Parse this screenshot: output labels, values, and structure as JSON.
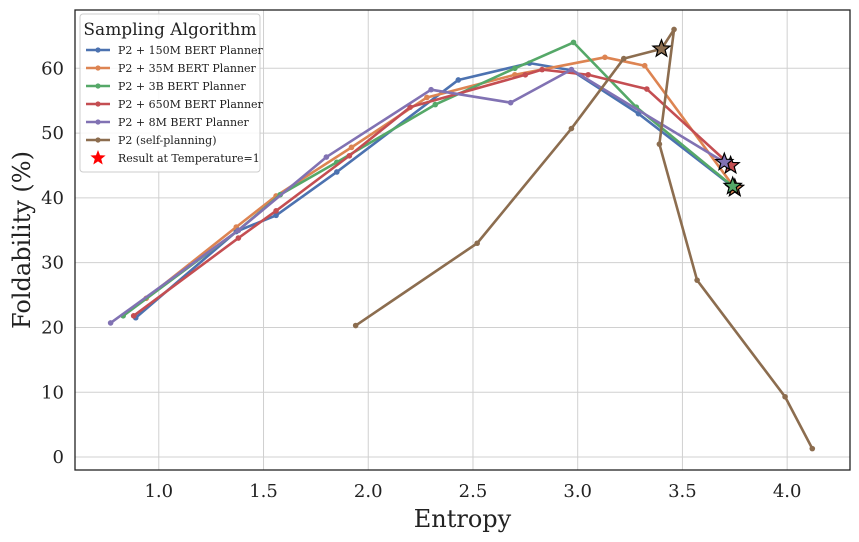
{
  "chart_data": {
    "type": "line",
    "title": "",
    "xlabel": "Entropy",
    "ylabel": "Foldability (%)",
    "xlim": [
      0.6,
      4.3
    ],
    "ylim": [
      -2,
      69
    ],
    "xticks": [
      1.0,
      1.5,
      2.0,
      2.5,
      3.0,
      3.5,
      4.0
    ],
    "xtick_labels": [
      "1.0",
      "1.5",
      "2.0",
      "2.5",
      "3.0",
      "3.5",
      "4.0"
    ],
    "yticks": [
      0,
      10,
      20,
      30,
      40,
      50,
      60
    ],
    "ytick_labels": [
      "0",
      "10",
      "20",
      "30",
      "40",
      "50",
      "60"
    ],
    "grid": true,
    "legend": {
      "title": "Sampling Algorithm",
      "position": "top-left",
      "marker_label": "Result at Temperature=1"
    },
    "series": [
      {
        "name": "P2 + 150M BERT Planner",
        "color": "#4c72b0",
        "x": [
          0.89,
          1.37,
          1.56,
          1.85,
          2.43,
          2.77,
          2.97,
          3.29,
          3.75
        ],
        "y": [
          21.5,
          34.8,
          37.3,
          44.0,
          58.2,
          60.8,
          59.7,
          53.0,
          41.5
        ],
        "t1": [
          3.75,
          41.5
        ]
      },
      {
        "name": "P2 + 35M BERT Planner",
        "color": "#dd8452",
        "x": [
          0.94,
          1.37,
          1.56,
          1.92,
          2.28,
          2.7,
          3.13,
          3.32,
          3.75
        ],
        "y": [
          24.5,
          35.5,
          40.3,
          47.8,
          55.5,
          59.0,
          61.7,
          60.4,
          41.5
        ],
        "t1": [
          3.75,
          41.5
        ]
      },
      {
        "name": "P2 + 3B BERT Planner",
        "color": "#55a868",
        "x": [
          0.83,
          1.38,
          1.58,
          1.85,
          2.32,
          2.7,
          2.98,
          3.28,
          3.74
        ],
        "y": [
          21.8,
          35.0,
          40.5,
          45.5,
          54.4,
          60.0,
          64.0,
          54.0,
          41.8
        ],
        "t1": [
          3.74,
          41.8
        ]
      },
      {
        "name": "P2 + 650M BERT Planner",
        "color": "#c44e52",
        "x": [
          0.88,
          1.38,
          1.56,
          1.91,
          2.2,
          2.75,
          2.83,
          3.05,
          3.33,
          3.73
        ],
        "y": [
          21.8,
          33.8,
          38.0,
          46.5,
          54.0,
          59.0,
          59.8,
          59.0,
          56.8,
          45.0
        ],
        "t1": [
          3.73,
          45.0
        ]
      },
      {
        "name": "P2 + 8M BERT Planner",
        "color": "#8172b3",
        "x": [
          0.77,
          1.38,
          1.8,
          2.3,
          2.68,
          2.97,
          3.7
        ],
        "y": [
          20.7,
          35.0,
          46.3,
          56.7,
          54.7,
          59.8,
          45.5
        ],
        "t1": [
          3.7,
          45.5
        ]
      },
      {
        "name": "P2 (self-planning)",
        "color": "#8c6d4f",
        "x": [
          1.94,
          2.52,
          2.97,
          3.22,
          3.4,
          3.46,
          3.39,
          3.57,
          3.99,
          4.12
        ],
        "y": [
          20.3,
          33.0,
          50.7,
          61.5,
          63.0,
          66.0,
          48.3,
          27.3,
          9.3,
          1.3
        ],
        "t1": [
          3.4,
          63.0
        ]
      }
    ]
  }
}
